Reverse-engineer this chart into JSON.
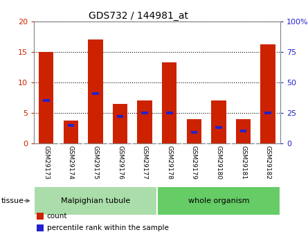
{
  "title": "GDS732 / 144981_at",
  "categories": [
    "GSM29173",
    "GSM29174",
    "GSM29175",
    "GSM29176",
    "GSM29177",
    "GSM29178",
    "GSM29179",
    "GSM29180",
    "GSM29181",
    "GSM29182"
  ],
  "count_values": [
    15.0,
    3.7,
    17.0,
    6.5,
    7.0,
    13.3,
    4.0,
    7.0,
    4.0,
    16.2
  ],
  "percentile_values": [
    35,
    15,
    41,
    22,
    25,
    25,
    9,
    13,
    10,
    25
  ],
  "left_ylim": [
    0,
    20
  ],
  "right_ylim": [
    0,
    100
  ],
  "left_yticks": [
    0,
    5,
    10,
    15,
    20
  ],
  "right_yticks": [
    0,
    25,
    50,
    75,
    100
  ],
  "right_yticklabels": [
    "0",
    "25",
    "50",
    "75",
    "100%"
  ],
  "bar_color": "#cc2200",
  "percentile_color": "#2222cc",
  "tissue_groups": [
    {
      "label": "Malpighian tubule",
      "start": 0,
      "end": 5,
      "color": "#aaddaa"
    },
    {
      "label": "whole organism",
      "start": 5,
      "end": 10,
      "color": "#66cc66"
    }
  ],
  "legend_items": [
    {
      "label": "count",
      "color": "#cc2200"
    },
    {
      "label": "percentile rank within the sample",
      "color": "#2222cc"
    }
  ],
  "bg_color": "#ffffff",
  "plot_bg_color": "#ffffff",
  "grid_color": "#000000",
  "tissue_label": "tissue",
  "tick_label_color_left": "#cc2200",
  "tick_label_color_right": "#2222cc",
  "bar_width": 0.6,
  "xticklabel_bg": "#cccccc",
  "spine_color": "#888888"
}
